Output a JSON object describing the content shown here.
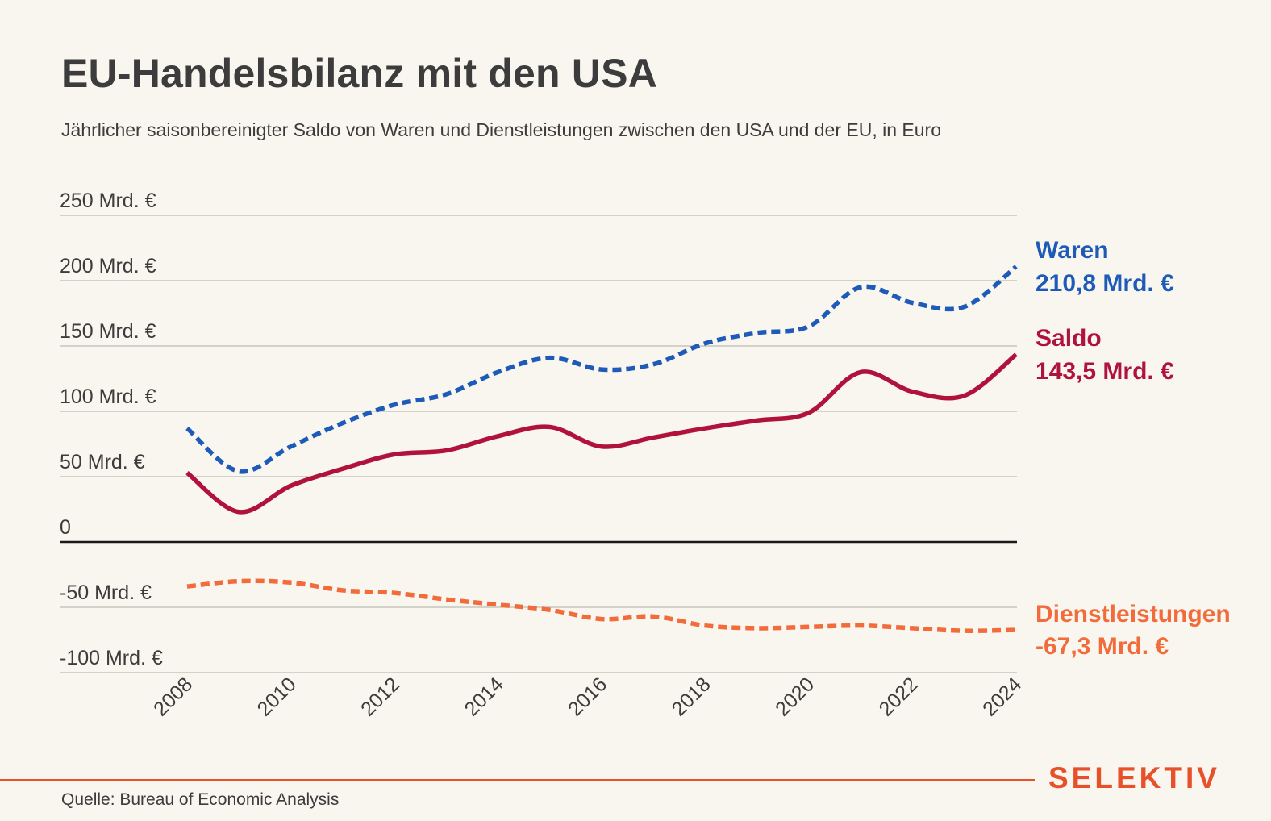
{
  "header": {
    "title": "EU-Handelsbilanz mit den USA",
    "subtitle": "Jährlicher saisonbereinigter Saldo von Waren und Dienstleistungen zwischen den USA und der EU, in Euro"
  },
  "footer": {
    "source": "Quelle: Bureau of Economic Analysis",
    "brand": "SELEKTIV"
  },
  "chart_data": {
    "type": "line",
    "x": [
      2008,
      2009,
      2010,
      2011,
      2012,
      2013,
      2014,
      2015,
      2016,
      2017,
      2018,
      2019,
      2020,
      2021,
      2022,
      2023,
      2024
    ],
    "ylim": [
      -100,
      250
    ],
    "yticks": [
      {
        "value": 250,
        "label": "250 Mrd. €"
      },
      {
        "value": 200,
        "label": "200 Mrd. €"
      },
      {
        "value": 150,
        "label": "150 Mrd. €"
      },
      {
        "value": 100,
        "label": "100 Mrd. €"
      },
      {
        "value": 50,
        "label": "50 Mrd. €"
      },
      {
        "value": 0,
        "label": "0"
      },
      {
        "value": -50,
        "label": "-50 Mrd. €"
      },
      {
        "value": -100,
        "label": "-100 Mrd. €"
      }
    ],
    "xticks": [
      "2008",
      "2010",
      "2012",
      "2014",
      "2016",
      "2018",
      "2020",
      "2022",
      "2024"
    ],
    "grid": true,
    "series": [
      {
        "name": "Waren",
        "end_label": "210,8 Mrd. €",
        "color": "#1e5bb8",
        "dashed": true,
        "values": [
          87,
          54,
          73,
          91,
          105,
          113,
          130,
          141,
          132,
          136,
          152,
          160,
          165,
          195,
          183,
          180,
          210.8
        ]
      },
      {
        "name": "Saldo",
        "end_label": "143,5 Mrd. €",
        "color": "#b0123b",
        "dashed": false,
        "values": [
          53,
          23,
          43,
          56,
          67,
          70,
          81,
          88,
          73,
          80,
          87,
          93,
          99,
          130,
          115,
          112,
          143.5
        ]
      },
      {
        "name": "Dienstleistungen",
        "end_label": "-67,3 Mrd. €",
        "color": "#f26b3a",
        "dashed": true,
        "values": [
          -34,
          -30,
          -31,
          -37,
          -39,
          -44,
          -48,
          -52,
          -59,
          -57,
          -64,
          -66,
          -65,
          -64,
          -66,
          -68,
          -67.3
        ]
      }
    ]
  }
}
